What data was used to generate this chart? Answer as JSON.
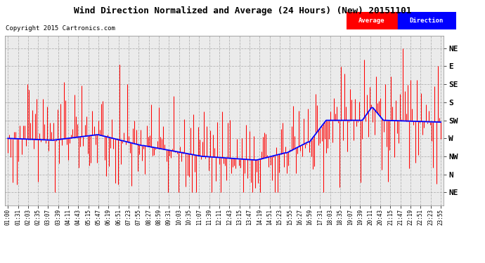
{
  "title": "Wind Direction Normalized and Average (24 Hours) (New) 20151101",
  "copyright": "Copyright 2015 Cartronics.com",
  "background_color": "#ffffff",
  "plot_bg_color": "#ebebeb",
  "grid_color": "#aaaaaa",
  "ytick_labels": [
    "NE",
    "N",
    "NW",
    "W",
    "SW",
    "S",
    "SE",
    "E",
    "NE"
  ],
  "ytick_values": [
    9,
    8,
    7,
    6,
    5,
    4,
    3,
    2,
    1
  ],
  "ylim": [
    0.3,
    9.7
  ],
  "yaxis_invert": true,
  "avg_line_color": "#0000ff",
  "dir_bar_color": "#ff0000",
  "legend_avg_color": "#ff0000",
  "legend_dir_color": "#0000ff",
  "n_points": 288,
  "noise_seed": 42,
  "noise_scale": 1.6,
  "x_tick_count": 44
}
